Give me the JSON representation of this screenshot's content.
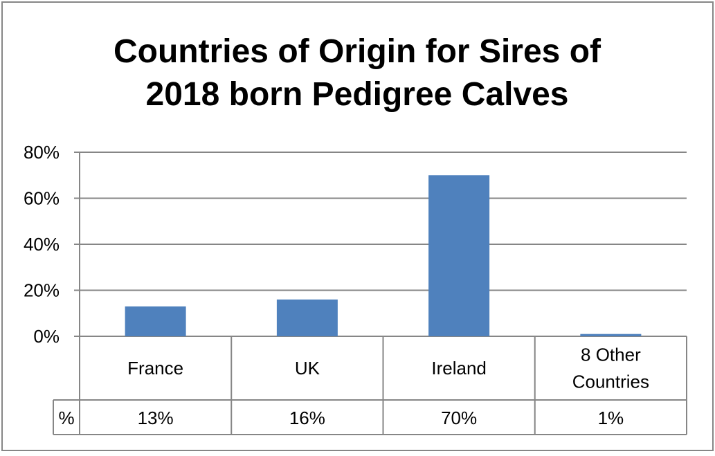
{
  "chart_data": {
    "type": "bar",
    "title_lines": [
      "Countries of Origin for Sires of",
      "2018 born Pedigree Calves"
    ],
    "categories": [
      [
        "France"
      ],
      [
        "UK"
      ],
      [
        "Ireland"
      ],
      [
        "8 Other",
        "Countries"
      ]
    ],
    "values": [
      13,
      16,
      70,
      1
    ],
    "y_ticks": [
      0,
      20,
      40,
      60,
      80
    ],
    "y_tick_labels": [
      "0%",
      "20%",
      "40%",
      "60%",
      "80%"
    ],
    "ylim": [
      0,
      80
    ],
    "grid": true,
    "legend": "none",
    "data_table": {
      "row_label": "%",
      "values": [
        "13%",
        "16%",
        "70%",
        "1%"
      ]
    },
    "colors": {
      "bar": "#4f81bd",
      "grid": "#868686",
      "text": "#000000",
      "border": "#868686"
    }
  }
}
